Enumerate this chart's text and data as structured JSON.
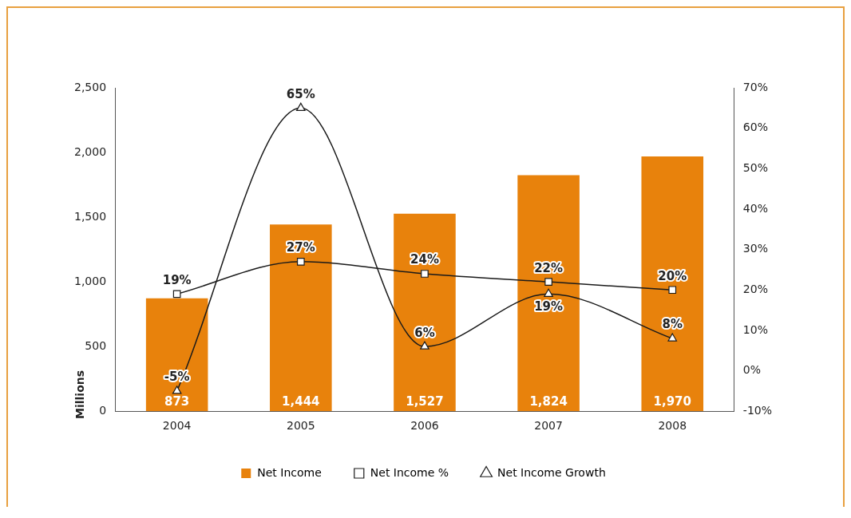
{
  "chart_data": {
    "type": "bar",
    "categories": [
      "2004",
      "2005",
      "2006",
      "2007",
      "2008"
    ],
    "series": [
      {
        "name": "Net Income",
        "color": "#e8820c",
        "values": [
          873,
          1444,
          1527,
          1824,
          1970
        ],
        "value_labels": [
          "873",
          "1,444",
          "1,527",
          "1,824",
          "1,970"
        ]
      },
      {
        "name": "Net Income %",
        "type": "line",
        "axis": "y2",
        "color": "#1a1a1a",
        "marker": "square",
        "values": [
          19,
          27,
          24,
          22,
          20
        ],
        "value_labels": [
          "19%",
          "27%",
          "24%",
          "22%",
          "20%"
        ]
      },
      {
        "name": "Net Income Growth",
        "type": "line",
        "axis": "y2",
        "color": "#1a1a1a",
        "marker": "triangle",
        "values": [
          -5,
          65,
          6,
          19,
          8
        ],
        "value_labels": [
          "-5%",
          "65%",
          "6%",
          "19%",
          "8%"
        ]
      }
    ],
    "ylabel": "Millions",
    "ylim": [
      0,
      2500
    ],
    "yticks": [
      {
        "value": 0,
        "label": "0"
      },
      {
        "value": 500,
        "label": "500"
      },
      {
        "value": 1000,
        "label": "1,000"
      },
      {
        "value": 1500,
        "label": "1,500"
      },
      {
        "value": 2000,
        "label": "2,000"
      },
      {
        "value": 2500,
        "label": "2,500"
      }
    ],
    "y2lim": [
      -10,
      70
    ],
    "y2ticks": [
      {
        "value": -10,
        "label": "-10%"
      },
      {
        "value": 0,
        "label": "0%"
      },
      {
        "value": 10,
        "label": "10%"
      },
      {
        "value": 20,
        "label": "20%"
      },
      {
        "value": 30,
        "label": "30%"
      },
      {
        "value": 40,
        "label": "40%"
      },
      {
        "value": 50,
        "label": "50%"
      },
      {
        "value": 60,
        "label": "60%"
      },
      {
        "value": 70,
        "label": "70%"
      }
    ],
    "grid": false,
    "legend": "bottom"
  }
}
